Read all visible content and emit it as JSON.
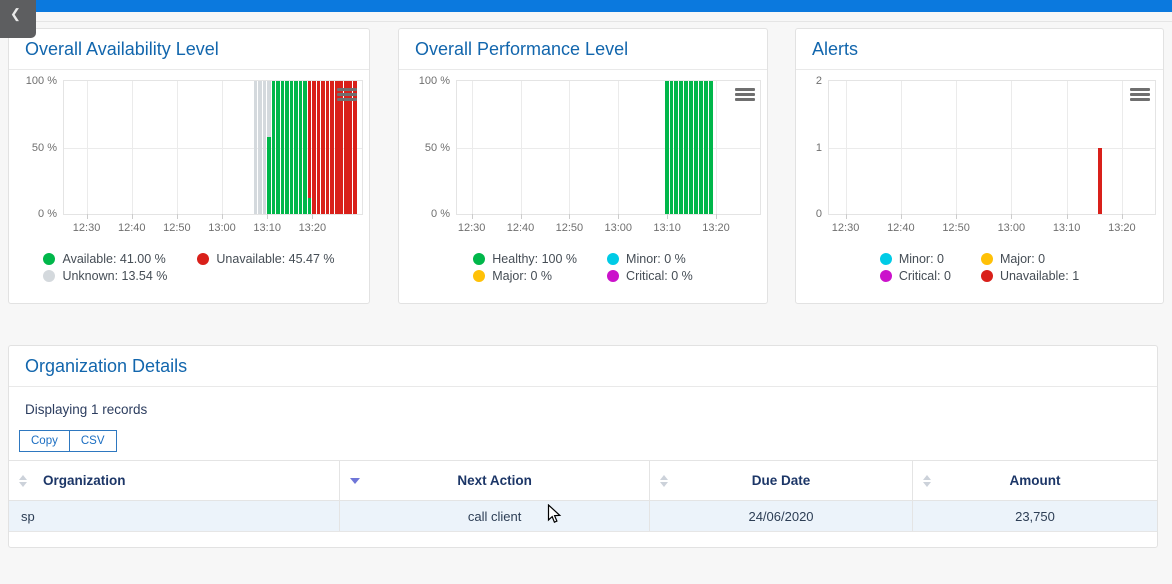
{
  "topbar": {
    "color": "#0b79de"
  },
  "back_tab": {
    "icon_char": "❮"
  },
  "palette": {
    "available": "#00b74a",
    "healthy": "#00b74a",
    "unavailable": "#d9201a",
    "unknown": "#d4d9dd",
    "minor": "#00cbe6",
    "major": "#ffc107",
    "critical": "#cb12cb"
  },
  "chart_data": [
    {
      "type": "bar",
      "title": "Overall Availability Level",
      "x_tick_labels": [
        "12:30",
        "12:40",
        "12:50",
        "13:00",
        "13:10",
        "13:20"
      ],
      "x_tick_minutes": [
        5,
        15,
        25,
        35,
        45,
        55
      ],
      "x_domain": [
        0,
        66
      ],
      "ylim": [
        0,
        100
      ],
      "y_ticks": [
        {
          "value": 100,
          "label": "100 %"
        },
        {
          "value": 50,
          "label": "50 %"
        },
        {
          "value": 0,
          "label": "0 %"
        }
      ],
      "bar_width": 0.8,
      "grid": true,
      "legend_position": "bottom",
      "bars": [
        {
          "t": 42,
          "stack": [
            {
              "key": "unknown",
              "value": 100
            }
          ]
        },
        {
          "t": 43,
          "stack": [
            {
              "key": "unknown",
              "value": 100
            }
          ]
        },
        {
          "t": 44,
          "stack": [
            {
              "key": "unknown",
              "value": 100
            }
          ]
        },
        {
          "t": 45,
          "stack": [
            {
              "key": "available",
              "value": 58
            },
            {
              "key": "unknown",
              "value": 42
            }
          ]
        },
        {
          "t": 46,
          "stack": [
            {
              "key": "available",
              "value": 100
            }
          ]
        },
        {
          "t": 47,
          "stack": [
            {
              "key": "available",
              "value": 100
            }
          ]
        },
        {
          "t": 48,
          "stack": [
            {
              "key": "available",
              "value": 100
            }
          ]
        },
        {
          "t": 49,
          "stack": [
            {
              "key": "available",
              "value": 100
            }
          ]
        },
        {
          "t": 50,
          "stack": [
            {
              "key": "available",
              "value": 100
            }
          ]
        },
        {
          "t": 51,
          "stack": [
            {
              "key": "available",
              "value": 100
            }
          ]
        },
        {
          "t": 52,
          "stack": [
            {
              "key": "available",
              "value": 100
            }
          ]
        },
        {
          "t": 53,
          "stack": [
            {
              "key": "available",
              "value": 100
            }
          ]
        },
        {
          "t": 54,
          "stack": [
            {
              "key": "available",
              "value": 12
            },
            {
              "key": "unavailable",
              "value": 88
            }
          ]
        },
        {
          "t": 55,
          "stack": [
            {
              "key": "unavailable",
              "value": 100
            }
          ]
        },
        {
          "t": 56,
          "stack": [
            {
              "key": "unavailable",
              "value": 100
            }
          ]
        },
        {
          "t": 57,
          "stack": [
            {
              "key": "unavailable",
              "value": 100
            }
          ]
        },
        {
          "t": 58,
          "stack": [
            {
              "key": "unavailable",
              "value": 100
            }
          ]
        },
        {
          "t": 59,
          "stack": [
            {
              "key": "unavailable",
              "value": 100
            }
          ]
        },
        {
          "t": 60,
          "stack": [
            {
              "key": "unavailable",
              "value": 100
            }
          ]
        },
        {
          "t": 61,
          "stack": [
            {
              "key": "unavailable",
              "value": 100
            }
          ]
        },
        {
          "t": 62,
          "stack": [
            {
              "key": "unavailable",
              "value": 100
            }
          ]
        },
        {
          "t": 63,
          "stack": [
            {
              "key": "unavailable",
              "value": 100
            }
          ]
        },
        {
          "t": 64,
          "stack": [
            {
              "key": "unavailable",
              "value": 100
            }
          ]
        }
      ],
      "legend": [
        {
          "key": "available",
          "label": "Available: 41.00 %"
        },
        {
          "key": "unavailable",
          "label": "Unavailable: 45.47 %"
        },
        {
          "key": "unknown",
          "label": "Unknown: 13.54 %"
        }
      ]
    },
    {
      "type": "bar",
      "title": "Overall Performance Level",
      "x_tick_labels": [
        "12:30",
        "12:40",
        "12:50",
        "13:00",
        "13:10",
        "13:20"
      ],
      "x_tick_minutes": [
        3,
        13,
        23,
        33,
        43,
        53
      ],
      "x_domain": [
        0,
        62
      ],
      "ylim": [
        0,
        100
      ],
      "y_ticks": [
        {
          "value": 100,
          "label": "100 %"
        },
        {
          "value": 50,
          "label": "50 %"
        },
        {
          "value": 0,
          "label": "0 %"
        }
      ],
      "bar_width": 0.8,
      "grid": true,
      "legend_position": "bottom",
      "bars": [
        {
          "t": 42.5,
          "stack": [
            {
              "key": "healthy",
              "value": 100
            }
          ]
        },
        {
          "t": 43.5,
          "stack": [
            {
              "key": "healthy",
              "value": 100
            }
          ]
        },
        {
          "t": 44.5,
          "stack": [
            {
              "key": "healthy",
              "value": 100
            }
          ]
        },
        {
          "t": 45.5,
          "stack": [
            {
              "key": "healthy",
              "value": 100
            }
          ]
        },
        {
          "t": 46.5,
          "stack": [
            {
              "key": "healthy",
              "value": 100
            }
          ]
        },
        {
          "t": 47.5,
          "stack": [
            {
              "key": "healthy",
              "value": 100
            }
          ]
        },
        {
          "t": 48.5,
          "stack": [
            {
              "key": "healthy",
              "value": 100
            }
          ]
        },
        {
          "t": 49.5,
          "stack": [
            {
              "key": "healthy",
              "value": 100
            }
          ]
        },
        {
          "t": 50.5,
          "stack": [
            {
              "key": "healthy",
              "value": 100
            }
          ]
        },
        {
          "t": 51.5,
          "stack": [
            {
              "key": "healthy",
              "value": 100
            }
          ]
        }
      ],
      "legend": [
        {
          "key": "healthy",
          "label": "Healthy: 100 %"
        },
        {
          "key": "minor",
          "label": "Minor: 0 %"
        },
        {
          "key": "major",
          "label": "Major: 0 %"
        },
        {
          "key": "critical",
          "label": "Critical: 0 %"
        }
      ]
    },
    {
      "type": "bar",
      "title": "Alerts",
      "x_tick_labels": [
        "12:30",
        "12:40",
        "12:50",
        "13:00",
        "13:10",
        "13:20"
      ],
      "x_tick_minutes": [
        3,
        13,
        23,
        33,
        43,
        53
      ],
      "x_domain": [
        0,
        59
      ],
      "ylim": [
        0,
        2
      ],
      "y_ticks": [
        {
          "value": 2,
          "label": "2"
        },
        {
          "value": 1,
          "label": "1"
        },
        {
          "value": 0,
          "label": "0"
        }
      ],
      "bar_width": 0.8,
      "grid": true,
      "legend_position": "bottom",
      "bars": [
        {
          "t": 48.7,
          "stack": [
            {
              "key": "unavailable",
              "value": 1
            }
          ]
        }
      ],
      "legend": [
        {
          "key": "minor",
          "label": "Minor: 0"
        },
        {
          "key": "major",
          "label": "Major: 0"
        },
        {
          "key": "critical",
          "label": "Critical: 0"
        },
        {
          "key": "unavailable",
          "label": "Unavailable: 1"
        }
      ]
    }
  ],
  "org_panel": {
    "title": "Organization Details",
    "info": "Displaying 1 records",
    "buttons": [
      "Copy",
      "CSV"
    ],
    "table": {
      "columns": [
        {
          "label": "Organization",
          "align": "left",
          "sort": "neutral",
          "width": "28.8%",
          "link": false
        },
        {
          "label": "Next Action",
          "align": "center",
          "sort": "desc",
          "width": "27.0%",
          "link": false
        },
        {
          "label": "Due Date",
          "align": "center",
          "sort": "neutral",
          "width": "22.9%",
          "link": false
        },
        {
          "label": "Amount",
          "align": "center",
          "sort": "neutral",
          "width": "21.3%",
          "link": true
        }
      ],
      "rows": [
        {
          "cells": [
            "sp",
            "call client",
            "24/06/2020",
            "23,750"
          ]
        }
      ]
    }
  }
}
